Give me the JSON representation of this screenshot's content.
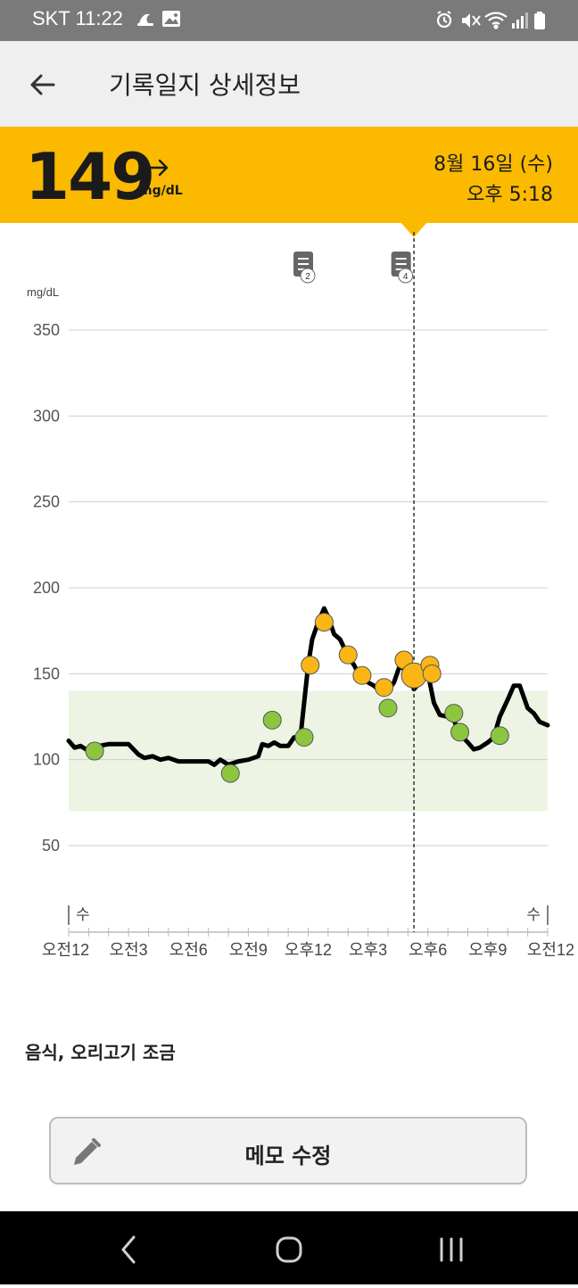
{
  "status_bar": {
    "carrier_time": "SKT 11:22",
    "left_icons": [
      "sleep-icon",
      "gallery-icon"
    ],
    "right_icons": [
      "alarm-icon",
      "mute-icon",
      "wifi-icon",
      "signal-icon",
      "battery-icon"
    ]
  },
  "app_bar": {
    "back_icon": "back-arrow-icon",
    "title": "기록일지 상세정보"
  },
  "reading": {
    "value": "149",
    "unit": "mg/dL",
    "trend_icon": "arrow-right-icon",
    "date": "8월 16일 (수)",
    "time": "오후 5:18",
    "banner_color": "#FBBA00"
  },
  "chart_data": {
    "type": "line",
    "y_unit_label": "mg/dL",
    "y_ticks": [
      "350",
      "300",
      "250",
      "200",
      "150",
      "100",
      "50"
    ],
    "ylim": [
      20,
      350
    ],
    "x_ticks": [
      "오전12",
      "오전3",
      "오전6",
      "오전9",
      "오후12",
      "오후3",
      "오후6",
      "오후9",
      "오전12"
    ],
    "xlim": [
      0,
      24
    ],
    "day_labels": [
      {
        "x": 0,
        "text": "수"
      },
      {
        "x": 24,
        "text": "수"
      }
    ],
    "target_range": {
      "low": 70,
      "high": 140,
      "color": "#edf4e4"
    },
    "grid": true,
    "series": [
      {
        "color": "#000000",
        "x": [
          0,
          0.3,
          0.6,
          1,
          1.5,
          2,
          2.5,
          3,
          3.5,
          3.8,
          4.2,
          4.6,
          5,
          5.5,
          6,
          6.5,
          7,
          7.3,
          7.6,
          8,
          8.5,
          9,
          9.5,
          9.7,
          10,
          10.3,
          10.6,
          11,
          11.3,
          11.6,
          12,
          12.2,
          12.5,
          12.8,
          13,
          13.3,
          13.6,
          14,
          14.3,
          14.6,
          15,
          15.3,
          15.6,
          16,
          16.3,
          16.6,
          17,
          17.3,
          17.6,
          18,
          18.3,
          18.6,
          19,
          19.3,
          19.6,
          20,
          20.3,
          20.6,
          21,
          21.3,
          21.6,
          22,
          22.3,
          22.6,
          23,
          23.3,
          23.6,
          24
        ],
        "values": [
          111,
          107,
          108,
          105,
          108,
          109,
          109,
          109,
          103,
          101,
          102,
          100,
          101,
          99,
          99,
          99,
          99,
          97,
          100,
          97,
          99,
          100,
          102,
          109,
          108,
          110,
          108,
          108,
          113,
          112,
          155,
          170,
          180,
          188,
          183,
          173,
          170,
          160,
          155,
          148,
          145,
          143,
          140,
          140,
          145,
          155,
          150,
          141,
          145,
          150,
          133,
          126,
          125,
          123,
          115,
          110,
          106,
          107,
          110,
          113,
          125,
          135,
          143,
          143,
          130,
          127,
          122,
          120
        ]
      }
    ],
    "points": [
      {
        "x": 1.3,
        "y": 105,
        "status": "normal"
      },
      {
        "x": 8.1,
        "y": 92,
        "status": "normal"
      },
      {
        "x": 10.2,
        "y": 123,
        "status": "normal"
      },
      {
        "x": 11.8,
        "y": 113,
        "status": "normal"
      },
      {
        "x": 12.1,
        "y": 155,
        "status": "high"
      },
      {
        "x": 12.8,
        "y": 180,
        "status": "high"
      },
      {
        "x": 14.0,
        "y": 161,
        "status": "high"
      },
      {
        "x": 14.7,
        "y": 149,
        "status": "high"
      },
      {
        "x": 15.8,
        "y": 142,
        "status": "high"
      },
      {
        "x": 16.0,
        "y": 130,
        "status": "normal"
      },
      {
        "x": 16.8,
        "y": 158,
        "status": "high"
      },
      {
        "x": 17.3,
        "y": 149,
        "status": "selected"
      },
      {
        "x": 18.1,
        "y": 155,
        "status": "high"
      },
      {
        "x": 18.2,
        "y": 150,
        "status": "high"
      },
      {
        "x": 19.3,
        "y": 127,
        "status": "normal"
      },
      {
        "x": 19.6,
        "y": 116,
        "status": "normal"
      },
      {
        "x": 21.6,
        "y": 114,
        "status": "normal"
      }
    ],
    "point_colors": {
      "normal": "#8CC63F",
      "high": "#FBB615",
      "selected": "#FBB615"
    },
    "memo_markers": [
      {
        "x": 11.8,
        "count": "2"
      },
      {
        "x": 16.7,
        "count": "4"
      }
    ],
    "selected_x": 17.3
  },
  "memo": {
    "text": "음식, 오리고기 조금"
  },
  "edit_memo_button": {
    "label": "메모 수정",
    "icon": "pencil-icon"
  },
  "nav_bar": {
    "back": "nav-back-icon",
    "home": "nav-home-icon",
    "recents": "nav-recents-icon"
  }
}
